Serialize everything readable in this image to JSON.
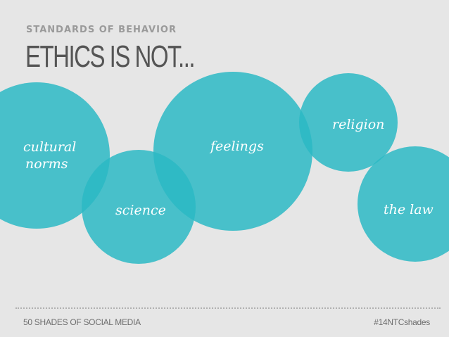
{
  "header": {
    "subtitle": "STANDARDS OF BEHAVIOR",
    "title": "ETHICS IS NOT..."
  },
  "bubbles": {
    "cultural_norms_line1": "cultural",
    "cultural_norms_line2": "norms",
    "science": "science",
    "feelings": "feelings",
    "religion": "religion",
    "the_law": "the law"
  },
  "footer": {
    "left": "50 SHADES OF SOCIAL MEDIA",
    "right": "#14NTCshades"
  },
  "colors": {
    "bubble": "#2bb8c4",
    "background": "#e6e6e6",
    "title": "#555555",
    "subtitle": "#9a9a9a"
  }
}
